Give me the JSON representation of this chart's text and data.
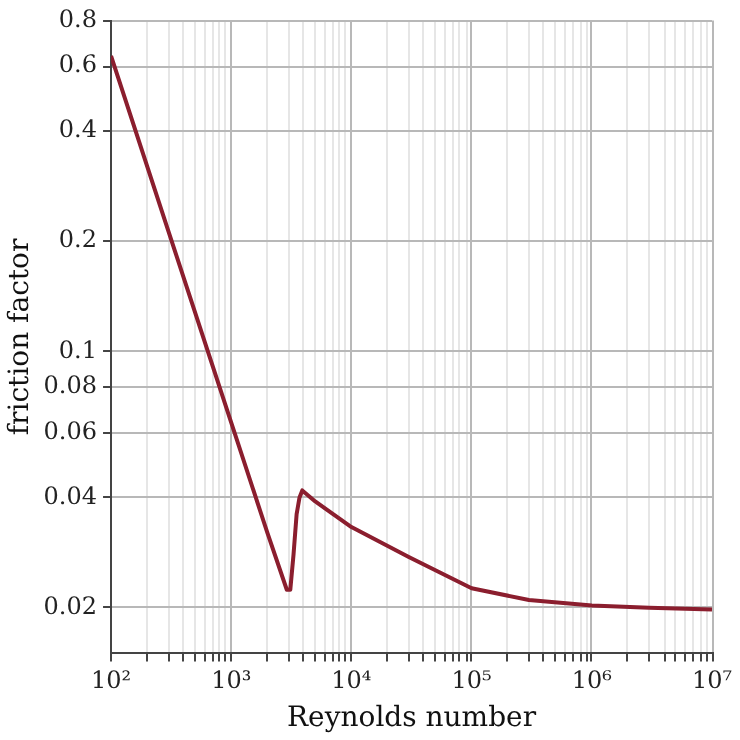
{
  "chart_data": {
    "type": "line",
    "xlabel": "Reynolds number",
    "ylabel": "friction factor",
    "log": "xy",
    "grid": true,
    "legend": false,
    "marker": "none",
    "line_style": "solid",
    "x": [
      100,
      300,
      1000,
      2000,
      2900,
      3100,
      3300,
      3500,
      3700,
      3900,
      5000,
      10000,
      30000,
      100000,
      300000,
      1000000,
      3000000,
      10000000
    ],
    "series": [
      {
        "color": "#8b1e2e",
        "values": [
          0.64,
          0.213,
          0.064,
          0.032,
          0.0224,
          0.0224,
          0.028,
          0.036,
          0.04,
          0.0418,
          0.039,
          0.0332,
          0.0275,
          0.0226,
          0.021,
          0.0203,
          0.02,
          0.0198
        ]
      }
    ],
    "xlim": [
      100,
      10000000
    ],
    "ylim": [
      0.015,
      0.8
    ],
    "xticks": [
      {
        "value": 100,
        "label": "10²"
      },
      {
        "value": 200,
        "label": null
      },
      {
        "value": 300,
        "label": null
      },
      {
        "value": 400,
        "label": null
      },
      {
        "value": 500,
        "label": null
      },
      {
        "value": 600,
        "label": null
      },
      {
        "value": 700,
        "label": null
      },
      {
        "value": 800,
        "label": null
      },
      {
        "value": 900,
        "label": null
      },
      {
        "value": 1000,
        "label": "10³"
      },
      {
        "value": 2000,
        "label": null
      },
      {
        "value": 3000,
        "label": null
      },
      {
        "value": 4000,
        "label": null
      },
      {
        "value": 5000,
        "label": null
      },
      {
        "value": 6000,
        "label": null
      },
      {
        "value": 7000,
        "label": null
      },
      {
        "value": 8000,
        "label": null
      },
      {
        "value": 9000,
        "label": null
      },
      {
        "value": 10000,
        "label": "10⁴"
      },
      {
        "value": 20000,
        "label": null
      },
      {
        "value": 30000,
        "label": null
      },
      {
        "value": 40000,
        "label": null
      },
      {
        "value": 50000,
        "label": null
      },
      {
        "value": 60000,
        "label": null
      },
      {
        "value": 70000,
        "label": null
      },
      {
        "value": 80000,
        "label": null
      },
      {
        "value": 90000,
        "label": null
      },
      {
        "value": 100000,
        "label": "10⁵"
      },
      {
        "value": 200000,
        "label": null
      },
      {
        "value": 300000,
        "label": null
      },
      {
        "value": 400000,
        "label": null
      },
      {
        "value": 500000,
        "label": null
      },
      {
        "value": 600000,
        "label": null
      },
      {
        "value": 700000,
        "label": null
      },
      {
        "value": 800000,
        "label": null
      },
      {
        "value": 900000,
        "label": null
      },
      {
        "value": 1000000,
        "label": "10⁶"
      },
      {
        "value": 2000000,
        "label": null
      },
      {
        "value": 3000000,
        "label": null
      },
      {
        "value": 4000000,
        "label": null
      },
      {
        "value": 5000000,
        "label": null
      },
      {
        "value": 6000000,
        "label": null
      },
      {
        "value": 7000000,
        "label": null
      },
      {
        "value": 8000000,
        "label": null
      },
      {
        "value": 9000000,
        "label": null
      },
      {
        "value": 10000000,
        "label": "10⁷"
      }
    ],
    "yticks": [
      0.02,
      0.04,
      0.06,
      0.08,
      0.1,
      0.2,
      0.4,
      0.6,
      0.8
    ]
  }
}
